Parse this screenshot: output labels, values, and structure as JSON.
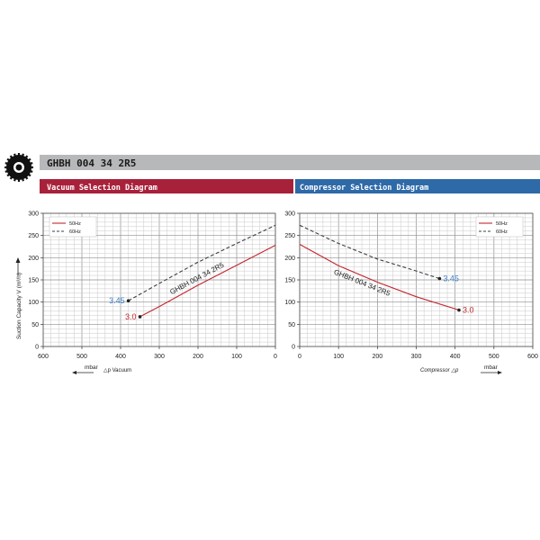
{
  "model_header": {
    "title": "GHBH 004 34 2R5",
    "band_color": "#b7b8ba",
    "logo_icon": "gear-badge-icon"
  },
  "vacuum_panel": {
    "title": "Vacuum Selection Diagram",
    "color": "#a8213a"
  },
  "compressor_panel": {
    "title": "Compressor Selection Diagram",
    "color": "#2f6aa8"
  },
  "shared_ylabel": "Suction Capacity V (m³/h)",
  "series_colors": {
    "50Hz": "#c2262e",
    "60Hz": "#3a3f48"
  },
  "chart_data": [
    {
      "type": "line",
      "name_text": "vacuum",
      "xlim": [
        600,
        0
      ],
      "ylim": [
        0,
        300
      ],
      "xticks": [
        600,
        500,
        400,
        300,
        200,
        100,
        0
      ],
      "yticks": [
        0,
        50,
        100,
        150,
        200,
        250,
        300
      ],
      "grid": true,
      "legend": "top-left",
      "xlabel_unit": "mbar",
      "xlabel": "△p Vacuum",
      "series": [
        {
          "name": "50Hz",
          "x": [
            350,
            300,
            200,
            100,
            0
          ],
          "y": [
            67,
            90,
            138,
            183,
            228
          ]
        },
        {
          "name": "60Hz",
          "x": [
            380,
            300,
            200,
            100,
            0
          ],
          "y": [
            103,
            142,
            190,
            232,
            273
          ]
        }
      ],
      "annotations": [
        {
          "text": "3.0",
          "x": 350,
          "y": 67,
          "series": "50Hz"
        },
        {
          "text": "3.45",
          "x": 380,
          "y": 103,
          "series": "60Hz"
        }
      ],
      "curve_label": "GHBH 004 34 2R5"
    },
    {
      "type": "line",
      "name_text": "compressor",
      "xlim": [
        0,
        600
      ],
      "ylim": [
        0,
        300
      ],
      "xticks": [
        0,
        100,
        200,
        300,
        400,
        500,
        600
      ],
      "yticks": [
        0,
        50,
        100,
        150,
        200,
        250,
        300
      ],
      "grid": true,
      "legend": "top-right",
      "xlabel": "Compressor △p",
      "xlabel_unit": "mbar",
      "series": [
        {
          "name": "50Hz",
          "x": [
            0,
            100,
            200,
            300,
            410
          ],
          "y": [
            230,
            182,
            145,
            112,
            82
          ]
        },
        {
          "name": "60Hz",
          "x": [
            0,
            100,
            200,
            300,
            360
          ],
          "y": [
            273,
            232,
            197,
            170,
            153
          ]
        }
      ],
      "annotations": [
        {
          "text": "3.0",
          "x": 410,
          "y": 82,
          "series": "50Hz"
        },
        {
          "text": "3.45",
          "x": 360,
          "y": 153,
          "series": "60Hz"
        }
      ],
      "curve_label": "GHBH 004 34 2R5"
    }
  ]
}
